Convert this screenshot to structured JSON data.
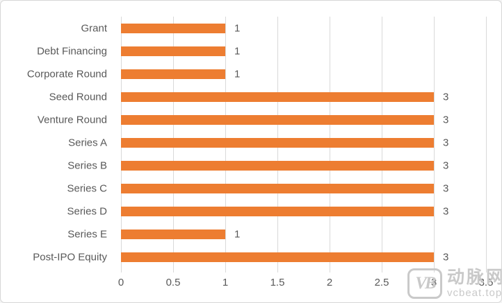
{
  "chart_data": {
    "type": "bar",
    "orientation": "horizontal",
    "title": "",
    "categories": [
      "Grant",
      "Debt Financing",
      "Corporate Round",
      "Seed Round",
      "Venture Round",
      "Series A",
      "Series B",
      "Series C",
      "Series D",
      "Series E",
      "Post-IPO Equity"
    ],
    "values": [
      1,
      1,
      1,
      3,
      3,
      3,
      3,
      3,
      3,
      1,
      3
    ],
    "data_labels": [
      "1",
      "1",
      "1",
      "3",
      "3",
      "3",
      "3",
      "3",
      "3",
      "1",
      "3"
    ],
    "xlim": [
      0,
      3.5
    ],
    "x_ticks": [
      0,
      0.5,
      1,
      1.5,
      2,
      2.5,
      3,
      3.5
    ],
    "x_tick_labels": [
      "0",
      "0.5",
      "1",
      "1.5",
      "2",
      "2.5",
      "3",
      "3.5"
    ],
    "grid": true,
    "legend": false,
    "colors": {
      "bar": "#ED7D31",
      "gridline": "#D9D9D9",
      "text": "#595959"
    }
  },
  "watermark": {
    "logo_text": "VB",
    "name": "动脉网",
    "domain": "vcbeat.top",
    "color": "#C9C9C9"
  }
}
